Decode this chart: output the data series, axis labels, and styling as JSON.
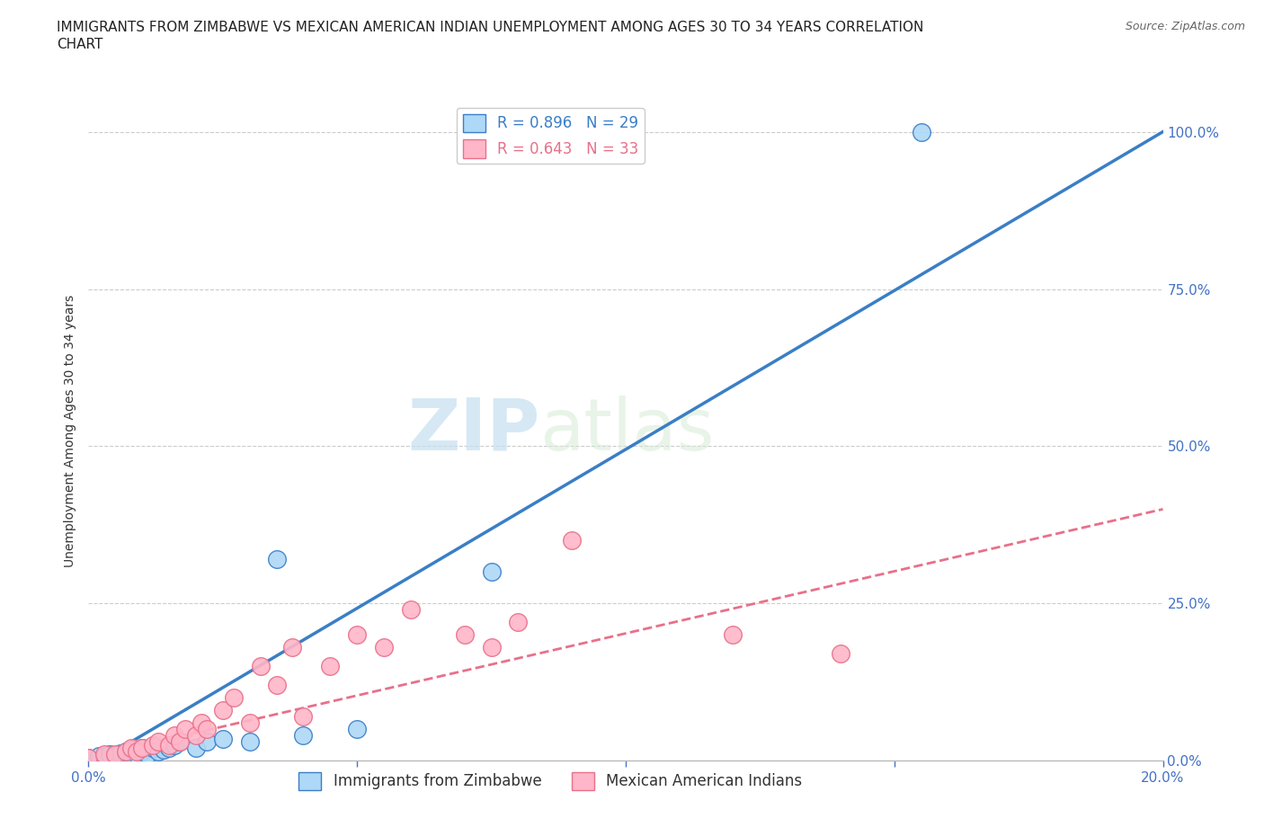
{
  "title_line1": "IMMIGRANTS FROM ZIMBABWE VS MEXICAN AMERICAN INDIAN UNEMPLOYMENT AMONG AGES 30 TO 34 YEARS CORRELATION",
  "title_line2": "CHART",
  "source": "Source: ZipAtlas.com",
  "ylabel": "Unemployment Among Ages 30 to 34 years",
  "xlim": [
    0.0,
    0.2
  ],
  "ylim": [
    0.0,
    1.05
  ],
  "yticks": [
    0.0,
    0.25,
    0.5,
    0.75,
    1.0
  ],
  "ytick_labels": [
    "0.0%",
    "25.0%",
    "50.0%",
    "75.0%",
    "100.0%"
  ],
  "xticks": [
    0.0,
    0.05,
    0.1,
    0.15,
    0.2
  ],
  "xtick_labels": [
    "0.0%",
    "",
    "",
    "",
    "20.0%"
  ],
  "blue_R": 0.896,
  "blue_N": 29,
  "pink_R": 0.643,
  "pink_N": 33,
  "blue_color": "#ADD8F7",
  "pink_color": "#FFB6C8",
  "line_blue_color": "#3A7EC6",
  "line_pink_color": "#E8708A",
  "watermark_zip": "ZIP",
  "watermark_atlas": "atlas",
  "background_color": "#FFFFFF",
  "blue_scatter_x": [
    0.0,
    0.002,
    0.003,
    0.004,
    0.005,
    0.006,
    0.007,
    0.007,
    0.008,
    0.008,
    0.009,
    0.01,
    0.01,
    0.011,
    0.012,
    0.013,
    0.014,
    0.015,
    0.016,
    0.017,
    0.02,
    0.022,
    0.025,
    0.03,
    0.035,
    0.04,
    0.05,
    0.075,
    0.155
  ],
  "blue_scatter_y": [
    0.005,
    0.008,
    0.006,
    0.01,
    0.008,
    0.012,
    0.01,
    0.015,
    0.012,
    0.018,
    0.01,
    0.015,
    0.02,
    0.01,
    0.02,
    0.015,
    0.018,
    0.02,
    0.025,
    0.03,
    0.02,
    0.03,
    0.035,
    0.03,
    0.32,
    0.04,
    0.05,
    0.3,
    1.0
  ],
  "pink_scatter_x": [
    0.0,
    0.003,
    0.005,
    0.007,
    0.008,
    0.009,
    0.01,
    0.012,
    0.013,
    0.015,
    0.016,
    0.017,
    0.018,
    0.02,
    0.021,
    0.022,
    0.025,
    0.027,
    0.03,
    0.032,
    0.035,
    0.038,
    0.04,
    0.045,
    0.05,
    0.055,
    0.06,
    0.07,
    0.075,
    0.08,
    0.09,
    0.12,
    0.14
  ],
  "pink_scatter_y": [
    0.005,
    0.01,
    0.01,
    0.015,
    0.02,
    0.015,
    0.02,
    0.025,
    0.03,
    0.025,
    0.04,
    0.03,
    0.05,
    0.04,
    0.06,
    0.05,
    0.08,
    0.1,
    0.06,
    0.15,
    0.12,
    0.18,
    0.07,
    0.15,
    0.2,
    0.18,
    0.24,
    0.2,
    0.18,
    0.22,
    0.35,
    0.2,
    0.17
  ],
  "blue_line_x0": 0.0,
  "blue_line_y0": -0.01,
  "blue_line_x1": 0.2,
  "blue_line_y1": 1.0,
  "pink_line_x0": 0.0,
  "pink_line_y0": 0.005,
  "pink_line_x1": 0.2,
  "pink_line_y1": 0.4,
  "title_fontsize": 11,
  "axis_label_fontsize": 10,
  "tick_fontsize": 11,
  "legend_fontsize": 12,
  "source_fontsize": 9,
  "tick_color": "#4472C4",
  "grid_color": "#CCCCCC"
}
